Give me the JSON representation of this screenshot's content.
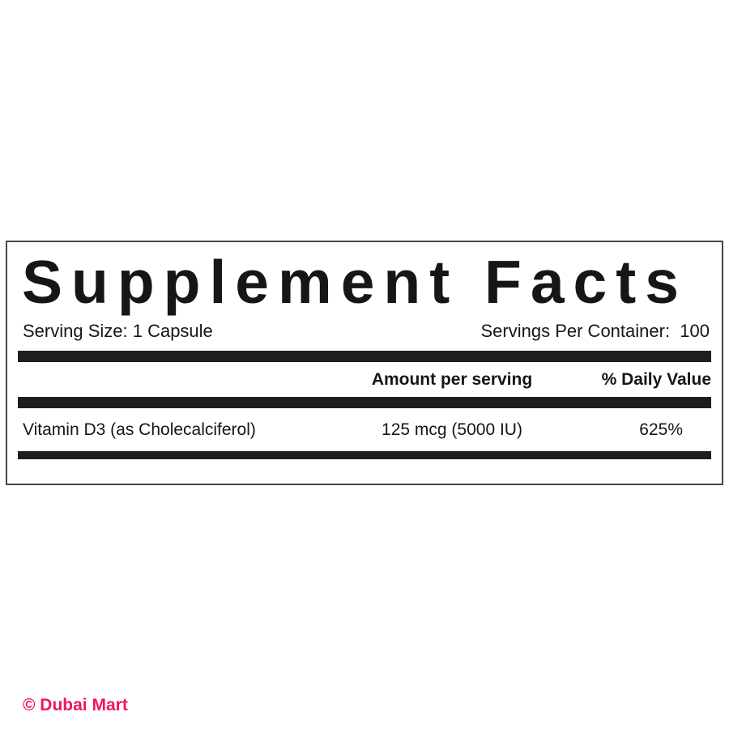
{
  "panel": {
    "title": "Supplement Facts",
    "serving_size": "Serving Size: 1 Capsule",
    "servings_per_container": "Servings Per Container:  100",
    "columns": {
      "amount_header": "Amount per serving",
      "daily_value_header": "% Daily Value"
    },
    "nutrients": [
      {
        "name": "Vitamin D3 (as Cholecalciferol)",
        "amount": "125 mcg (5000 IU)",
        "daily_value": "625%"
      }
    ],
    "colors": {
      "rule_bar": "#1e1e1e",
      "border": "#474747",
      "text": "#161616"
    }
  },
  "watermark": {
    "text": "© Dubai Mart",
    "color": "#ee1467"
  }
}
